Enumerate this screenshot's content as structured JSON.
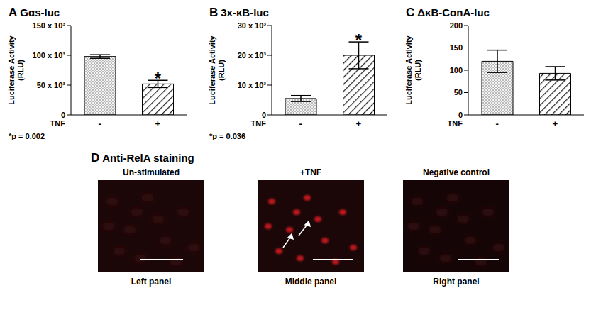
{
  "chart_data": [
    {
      "type": "bar",
      "label": "A",
      "title": "Gαs-luc",
      "y_label": "Luciferase Activity (RLU)",
      "x_label": "TNF",
      "categories": [
        "-",
        "+"
      ],
      "values": [
        98000,
        52000
      ],
      "errors": [
        3000,
        6000
      ],
      "ylim": [
        0,
        150000
      ],
      "yticks": [
        0,
        {
          "value": 50000,
          "label": "50 x 10³"
        },
        {
          "value": 100000,
          "label": "100 x 10³"
        },
        {
          "value": 150000,
          "label": "150 x 10³"
        }
      ],
      "annotations": [
        {
          "text": "*",
          "category": "+"
        }
      ],
      "note": "*p = 0.002"
    },
    {
      "type": "bar",
      "label": "B",
      "title": "3x-κB-luc",
      "y_label": "Luciferase Activity (RLU)",
      "x_label": "TNF",
      "categories": [
        "-",
        "+"
      ],
      "values": [
        5500,
        20000
      ],
      "errors": [
        1000,
        4500
      ],
      "ylim": [
        0,
        30000
      ],
      "yticks": [
        0,
        {
          "value": 10000,
          "label": "10 x 10³"
        },
        {
          "value": 20000,
          "label": "20 x 10³"
        },
        {
          "value": 30000,
          "label": "30 x 10³"
        }
      ],
      "annotations": [
        {
          "text": "*",
          "category": "+"
        }
      ],
      "note": "*p = 0.036"
    },
    {
      "type": "bar",
      "label": "C",
      "title": "ΔκB-ConA-luc",
      "y_label": "Luciferase Activity (RLU)",
      "x_label": "TNF",
      "categories": [
        "-",
        "+"
      ],
      "values": [
        120,
        93
      ],
      "errors": [
        25,
        15
      ],
      "ylim": [
        0,
        200
      ],
      "yticks": [
        0,
        50,
        100,
        150,
        200
      ]
    }
  ],
  "panel_d": {
    "label": "D",
    "title": "Anti-RelA staining",
    "images": [
      {
        "heading": "Un-stimulated",
        "caption": "Left panel"
      },
      {
        "heading": "+TNF",
        "caption": "Middle panel"
      },
      {
        "heading": "Negative control",
        "caption": "Right panel"
      }
    ]
  }
}
